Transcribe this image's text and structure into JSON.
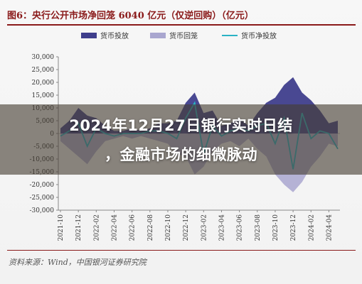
{
  "figure_title": "图6：央行公开市场净回笼 6040 亿元（仅逆回购）（亿元）",
  "source": "资料来源：Wind，中国银河证券研究院",
  "headline": {
    "line1": "2024年12月27日银行实时日结",
    "line2": "，金融市场的细微脉动"
  },
  "colors": {
    "injection": "#3f3e8c",
    "withdrawal": "#a9a6cf",
    "net": "#2ab3c4",
    "title": "#8a1a1a"
  },
  "chart_data": {
    "type": "area",
    "title": "",
    "xlabel": "",
    "ylabel": "",
    "ylim": [
      -30000,
      30000
    ],
    "yticks": [
      30000,
      25000,
      20000,
      15000,
      10000,
      5000,
      0,
      -5000,
      -10000,
      -15000,
      -20000,
      -25000,
      -30000
    ],
    "ytick_labels": [
      "30,000",
      "25,000",
      "20,000",
      "15,000",
      "10,000",
      "5,000",
      "0",
      "-5,000",
      "-10,000",
      "-15,000",
      "-20,000",
      "-25,000",
      "-30,000"
    ],
    "xtick_labels": [
      "2021-10",
      "2021-12",
      "2022-02",
      "2022-04",
      "2022-06",
      "2022-08",
      "2022-10",
      "2022-12",
      "2023-02",
      "2023-04",
      "2023-06",
      "2023-08",
      "2023-10",
      "2023-12",
      "2024-02",
      "2024-04"
    ],
    "legend": {
      "position": "top"
    },
    "x": [
      "2021-10",
      "2021-11",
      "2021-12",
      "2022-01",
      "2022-02",
      "2022-03",
      "2022-04",
      "2022-05",
      "2022-06",
      "2022-07",
      "2022-08",
      "2022-09",
      "2022-10",
      "2022-11",
      "2022-12",
      "2023-01",
      "2023-02",
      "2023-03",
      "2023-04",
      "2023-05",
      "2023-06",
      "2023-07",
      "2023-08",
      "2023-09",
      "2023-10",
      "2023-11",
      "2023-12",
      "2024-01",
      "2024-02",
      "2024-03",
      "2024-04",
      "2024-05"
    ],
    "series": [
      {
        "name": "货币投放",
        "kind": "area",
        "values": [
          2000,
          5000,
          10000,
          7000,
          6000,
          3000,
          1000,
          1000,
          2000,
          1000,
          2000,
          4000,
          4000,
          5000,
          12000,
          16000,
          8000,
          9000,
          3000,
          4000,
          6000,
          3000,
          8000,
          12000,
          14000,
          19000,
          22000,
          16000,
          13000,
          9000,
          4000,
          5000
        ]
      },
      {
        "name": "货币回笼",
        "kind": "area",
        "values": [
          -3000,
          -6000,
          -9000,
          -12000,
          -7000,
          -3000,
          -2000,
          -1000,
          -2000,
          -1000,
          -2000,
          -3000,
          -4000,
          -8000,
          -9000,
          -16000,
          -13000,
          -7000,
          -4000,
          -3000,
          -5000,
          -2000,
          -6000,
          -9000,
          -16000,
          -20000,
          -23000,
          -19000,
          -13000,
          -9000,
          -4000,
          -5000
        ]
      },
      {
        "name": "货币净投放",
        "kind": "line",
        "values": [
          -1000,
          1000,
          4000,
          -5000,
          2000,
          0,
          -1000,
          0,
          0,
          0,
          1000,
          1000,
          0,
          -2000,
          6000,
          12000,
          -8000,
          3000,
          -1000,
          1000,
          2000,
          1000,
          3000,
          4000,
          -4000,
          6000,
          -14000,
          8000,
          -2000,
          1000,
          0,
          -6040
        ]
      }
    ]
  }
}
